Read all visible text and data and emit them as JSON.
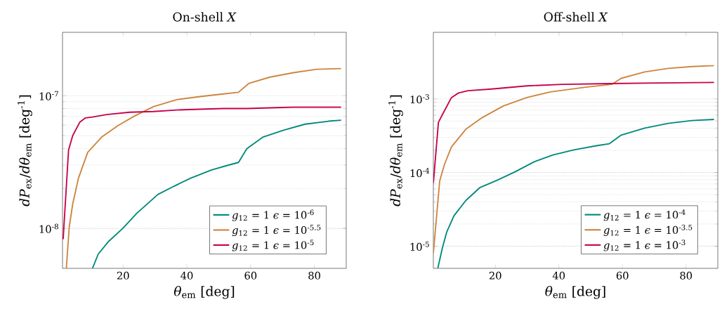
{
  "chart_data": [
    {
      "type": "line",
      "title": "On-shell *X*",
      "xlabel": "*θ*$_{em}$ [deg]",
      "ylabel": "*dP*$_{ex}$/*dθ*$_{em}$ [deg$^{-1}$]",
      "xlim": [
        1,
        90
      ],
      "ylim": [
        5e-09,
        3e-07
      ],
      "xticks": [
        20,
        40,
        60,
        80
      ],
      "yticks": [
        {
          "value": 1e-08,
          "label": "10$^{-8}$"
        },
        {
          "value": 1e-07,
          "label": "10$^{-7}$"
        }
      ],
      "log": "y",
      "grid": "y",
      "legend": "bottom right",
      "line_style": "solid",
      "series": [
        {
          "name": "*g*$_{12}$ = 1 *ϵ* = 10$^{-6}$",
          "color": "#00897b",
          "x": [
            10.4,
            12.2,
            15.5,
            19.9,
            24.3,
            30.9,
            36.0,
            41.2,
            47.8,
            52.9,
            56.2,
            58.8,
            63.9,
            70.5,
            77.1,
            84.4,
            88.4
          ],
          "values": [
            5e-09,
            6.4e-09,
            8e-09,
            1e-08,
            1.3e-08,
            1.8e-08,
            2.08e-08,
            2.39e-08,
            2.76e-08,
            2.99e-08,
            3.14e-08,
            3.98e-08,
            4.88e-08,
            5.51e-08,
            6.1e-08,
            6.42e-08,
            6.53e-08
          ]
        },
        {
          "name": "*g*$_{12}$ = 1 *ϵ* = 10$^{-5.5}$",
          "color": "#cd853f",
          "x": [
            2.2,
            3.1,
            4.2,
            6.0,
            8.9,
            13.3,
            18.5,
            23.6,
            29.5,
            36.8,
            44.1,
            51.4,
            56.2,
            59.5,
            66.1,
            73.4,
            80.7,
            88.4
          ],
          "values": [
            5e-09,
            1.02e-08,
            1.53e-08,
            2.39e-08,
            3.74e-08,
            4.88e-08,
            5.97e-08,
            7.03e-08,
            8.26e-08,
            9.33e-08,
            9.84e-08,
            1.03e-07,
            1.06e-07,
            1.24e-07,
            1.38e-07,
            1.49e-07,
            1.58e-07,
            1.6e-07
          ]
        },
        {
          "name": "*g*$_{12}$ = 1 *ϵ* = 10$^{-5}$",
          "color": "#c8004b",
          "x": [
            1.2,
            2.9,
            4.2,
            6.4,
            8.2,
            10.4,
            14.8,
            22.1,
            29.5,
            36.8,
            44.1,
            51.4,
            58.8,
            66.1,
            73.4,
            80.7,
            88.4
          ],
          "values": [
            8.3e-09,
            3.9e-08,
            5e-08,
            6.3e-08,
            6.8e-08,
            6.9e-08,
            7.2e-08,
            7.5e-08,
            7.6e-08,
            7.8e-08,
            7.9e-08,
            8e-08,
            8e-08,
            8.1e-08,
            8.2e-08,
            8.2e-08,
            8.2e-08
          ]
        }
      ]
    },
    {
      "type": "line",
      "title": "Off-shell *X*",
      "xlabel": "*θ*$_{em}$ [deg]",
      "ylabel": "*dP*$_{ex}$/*dθ*$_{em}$ [deg$^{-1}$]",
      "xlim": [
        0.5,
        90
      ],
      "ylim": [
        5e-06,
        0.008
      ],
      "xticks": [
        20,
        40,
        60,
        80
      ],
      "yticks": [
        {
          "value": 1e-05,
          "label": "10$^{-5}$"
        },
        {
          "value": 0.0001,
          "label": "10$^{-4}$"
        },
        {
          "value": 0.001,
          "label": "10$^{-3}$"
        }
      ],
      "log": "y",
      "grid": "y",
      "legend": "bottom right",
      "line_style": "solid",
      "series": [
        {
          "name": "*g*$_{12}$ = 1 *ϵ* = 10$^{-4}$",
          "color": "#00897b",
          "x": [
            1.9,
            3.3,
            4.7,
            7.0,
            10.7,
            15.1,
            20.3,
            26.2,
            32.1,
            38.1,
            44.7,
            52.1,
            55.9,
            59.6,
            67.0,
            74.4,
            81.8,
            88.8
          ],
          "values": [
            5e-06,
            9.3e-06,
            1.55e-05,
            2.59e-05,
            4.16e-05,
            6.22e-05,
            7.75e-05,
            0.000102,
            0.000139,
            0.000173,
            0.000203,
            0.000232,
            0.000246,
            0.000322,
            0.000401,
            0.000464,
            0.000507,
            0.000526
          ]
        },
        {
          "name": "*g*$_{12}$ = 1 *ϵ* = 10$^{-3.5}$",
          "color": "#cd853f",
          "x": [
            0.5,
            2.5,
            4.0,
            6.2,
            10.7,
            15.9,
            22.5,
            29.9,
            37.3,
            48.4,
            56.6,
            59.6,
            67.0,
            74.4,
            81.8,
            88.8
          ],
          "values": [
            8e-06,
            7.7e-05,
            0.000129,
            0.000223,
            0.000386,
            0.000557,
            0.0008,
            0.00104,
            0.00124,
            0.00144,
            0.00157,
            0.0019,
            0.00232,
            0.00259,
            0.00274,
            0.00283
          ]
        },
        {
          "name": "*g*$_{12}$ = 1 *ϵ* = 10$^{-3}$",
          "color": "#c8004b",
          "x": [
            0.5,
            2.1,
            3.6,
            6.2,
            8.4,
            11.4,
            18.8,
            29.9,
            41.0,
            55.9,
            70.7,
            88.8
          ],
          "values": [
            7.2e-05,
            0.00048,
            0.00064,
            0.00104,
            0.0012,
            0.00129,
            0.00136,
            0.0015,
            0.00157,
            0.00161,
            0.00164,
            0.00167
          ]
        }
      ]
    }
  ]
}
